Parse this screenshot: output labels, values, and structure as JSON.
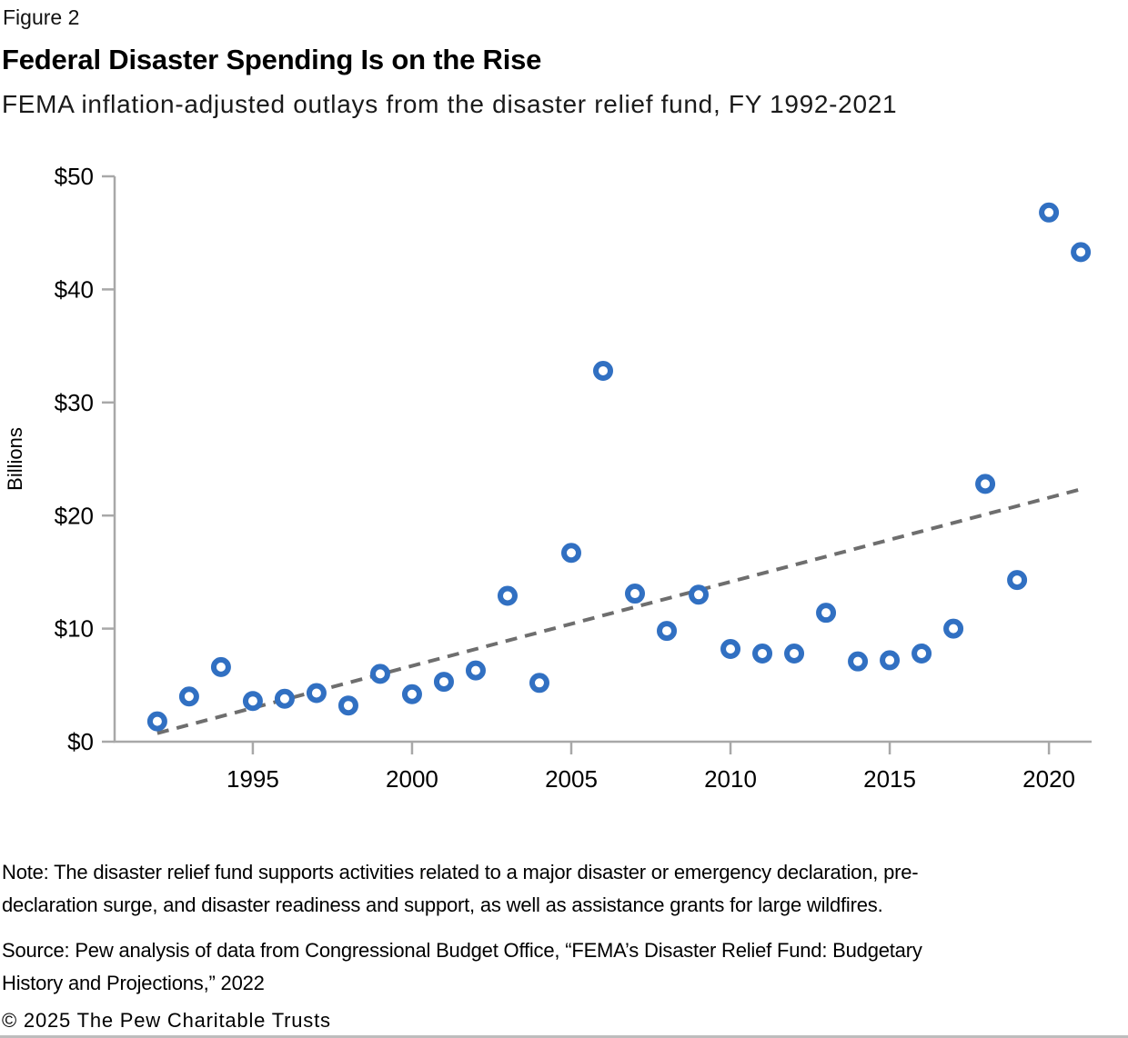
{
  "figure_label": "Figure 2",
  "title": "Federal Disaster Spending Is on the Rise",
  "subtitle": "FEMA inflation-adjusted outlays from the disaster relief fund, FY 1992-2021",
  "chart_data": {
    "type": "scatter",
    "series_name": "FEMA inflation-adjusted outlays from the disaster relief fund",
    "x": [
      1992,
      1993,
      1994,
      1995,
      1996,
      1997,
      1998,
      1999,
      2000,
      2001,
      2002,
      2003,
      2004,
      2005,
      2006,
      2007,
      2008,
      2009,
      2010,
      2011,
      2012,
      2013,
      2014,
      2015,
      2016,
      2017,
      2018,
      2019,
      2020,
      2021
    ],
    "values": [
      1.8,
      4.0,
      6.6,
      3.6,
      3.8,
      4.3,
      3.2,
      6.0,
      4.2,
      5.3,
      6.3,
      12.9,
      5.2,
      16.7,
      32.8,
      13.1,
      9.8,
      13.0,
      8.2,
      7.8,
      7.8,
      11.4,
      7.1,
      7.2,
      7.8,
      10.0,
      22.8,
      14.3,
      46.8,
      43.3
    ],
    "ylabel": "Billions",
    "xlabel": "",
    "ylim": [
      0,
      50
    ],
    "xlim": [
      1990.66,
      2021.34
    ],
    "ytick_values": [
      0,
      10,
      20,
      30,
      40,
      50
    ],
    "ytick_labels": [
      "$0",
      "$10",
      "$20",
      "$30",
      "$40",
      "$50"
    ],
    "xtick_values": [
      1995,
      2000,
      2005,
      2010,
      2015,
      2020
    ],
    "xtick_labels": [
      "1995",
      "2000",
      "2005",
      "2010",
      "2015",
      "2020"
    ],
    "grid": false,
    "legend": "none",
    "trendline": {
      "style": "dashed",
      "x1": 1992,
      "y1": 0.75,
      "x2": 2021.1,
      "y2": 22.4
    },
    "colors": {
      "point": "#3170c2",
      "trend": "#6e6e6e",
      "axis": "#a8a8a8",
      "tick_text": "#000000"
    }
  },
  "note_lines": [
    "Note: The disaster relief fund supports activities related to a major disaster or emergency declaration, pre-",
    "declaration surge, and disaster readiness and support, as well as assistance grants for large wildfires."
  ],
  "source_lines": [
    "Source: Pew analysis of data from Congressional Budget Office, “FEMA’s Disaster Relief Fund: Budgetary",
    "History and Projections,” 2022"
  ],
  "copyright": "© 2025 The Pew Charitable Trusts"
}
